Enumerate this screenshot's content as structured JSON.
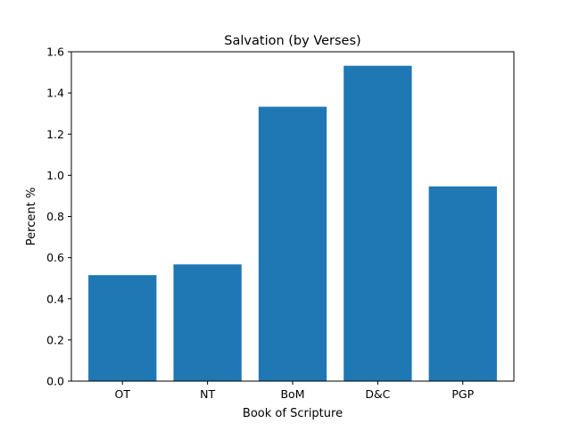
{
  "chart_data": {
    "type": "bar",
    "title": "Salvation (by Verses)",
    "xlabel": "Book of Scripture",
    "ylabel": "Percent %",
    "categories": [
      "OT",
      "NT",
      "BoM",
      "D&C",
      "PGP"
    ],
    "values": [
      0.515,
      0.567,
      1.333,
      1.532,
      0.946
    ],
    "ylim": [
      0,
      1.6
    ],
    "yticks": [
      0.0,
      0.2,
      0.4,
      0.6,
      0.8,
      1.0,
      1.2,
      1.4,
      1.6
    ],
    "ytick_labels": [
      "0.0",
      "0.2",
      "0.4",
      "0.6",
      "0.8",
      "1.0",
      "1.2",
      "1.4",
      "1.6"
    ],
    "bar_color": "#1f77b4",
    "grid": false,
    "legend": "none"
  }
}
